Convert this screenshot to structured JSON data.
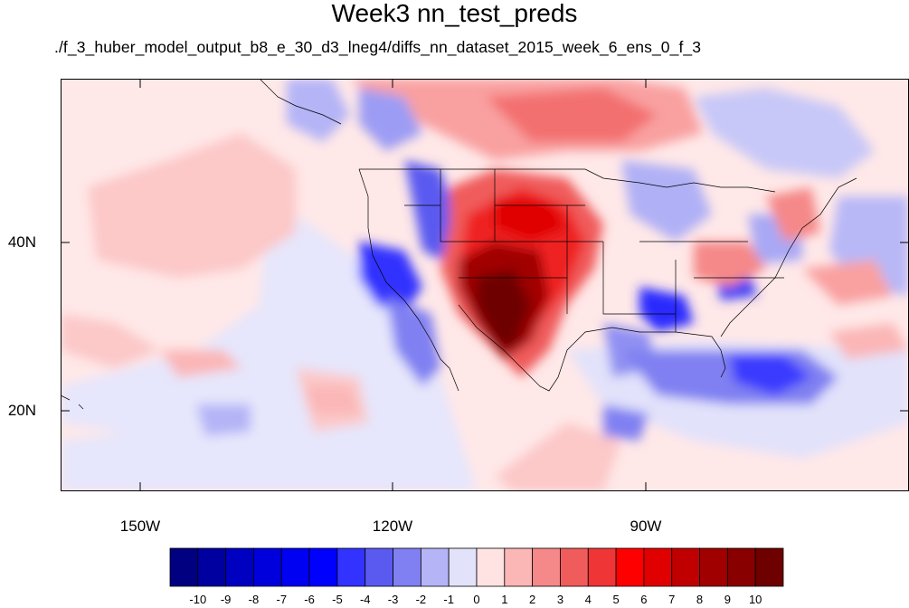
{
  "title": "Week3 nn_test_preds",
  "subtitle": "./f_3_huber_model_output_b8_e_30_d3_lneg4/diffs_nn_dataset_2015_week_6_ens_0_f_3",
  "map": {
    "lat_labels": [
      "40N",
      "20N"
    ],
    "lon_labels": [
      "150W",
      "120W",
      "90W"
    ]
  },
  "colorbar": {
    "labels": [
      "-10",
      "-9",
      "-8",
      "-7",
      "-6",
      "-5",
      "-4",
      "-3",
      "-2",
      "-1",
      "0",
      "1",
      "2",
      "3",
      "4",
      "5",
      "6",
      "7",
      "8",
      "9",
      "10"
    ],
    "colors": [
      "#000080",
      "#0000a0",
      "#0000c0",
      "#0000dd",
      "#0000f2",
      "#0000ff",
      "#3333ff",
      "#5a5af0",
      "#8080f2",
      "#b4b4f7",
      "#e2e2fb",
      "#ffe3e3",
      "#fbb6b6",
      "#f58888",
      "#f05c5c",
      "#ef3535",
      "#ff0000",
      "#e00000",
      "#c00000",
      "#a00000",
      "#880000",
      "#6e0000"
    ]
  }
}
